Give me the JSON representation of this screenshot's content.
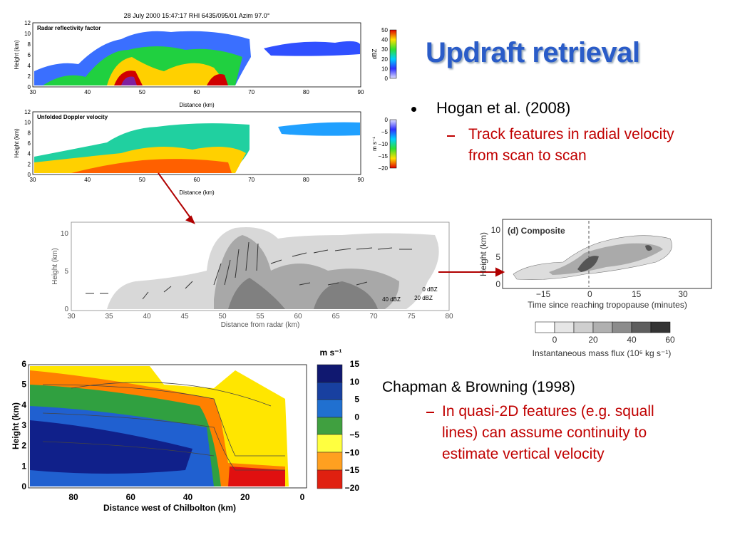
{
  "title": "Updraft retrieval",
  "bullets": [
    {
      "text": "Hogan et al. (2008)",
      "sub": "Track features in radial velocity from scan to scan"
    },
    {
      "text": "Chapman & Browning (1998)",
      "sub": "In quasi-2D features (e.g. squall lines) can assume continuity to estimate vertical velocity"
    }
  ],
  "figures": {
    "radar": {
      "header": "28 July 2000 15:47:17 RHI 6435/095/01 Azim  97.0°",
      "panels": [
        {
          "title": "Radar reflectivity factor",
          "colorbar_label": "dBZ",
          "colorbar_ticks": [
            "50",
            "40",
            "30",
            "20",
            "10",
            "0"
          ]
        },
        {
          "title": "Unfolded Doppler velocity",
          "colorbar_label": "m s⁻¹",
          "colorbar_ticks": [
            "0",
            "−5",
            "−10",
            "−15",
            "−20"
          ]
        }
      ],
      "ylabel": "Height (km)",
      "yticks": [
        "0",
        "2",
        "4",
        "6",
        "8",
        "10",
        "12"
      ],
      "xticks": [
        "30",
        "40",
        "50",
        "60",
        "70",
        "80",
        "90"
      ],
      "xlabel": "Distance (km)"
    },
    "retrieval": {
      "ylabel": "Height (km)",
      "yticks": [
        "0",
        "5",
        "10"
      ],
      "xticks": [
        "30",
        "35",
        "40",
        "45",
        "50",
        "55",
        "60",
        "65",
        "70",
        "75",
        "80"
      ],
      "xlabel": "Distance from radar (km)",
      "contours": [
        "0 dBZ",
        "20 dBZ",
        "40 dBZ"
      ]
    },
    "composite": {
      "panel": "(d) Composite",
      "ylabel": "Height (km)",
      "yticks": [
        "0",
        "5",
        "10"
      ],
      "xticks": [
        "−15",
        "0",
        "15",
        "30"
      ],
      "xlabel": "Time since reaching tropopause (minutes)",
      "colorbar_ticks": [
        "0",
        "20",
        "40",
        "60"
      ],
      "colorbar_label": "Instantaneous mass flux (10⁶ kg s⁻¹)"
    },
    "squall": {
      "ylabel": "Height (km)",
      "yticks": [
        "0",
        "1",
        "2",
        "3",
        "4",
        "5",
        "6"
      ],
      "xticks": [
        "80",
        "60",
        "40",
        "20",
        "0"
      ],
      "xlabel": "Distance west of Chilbolton (km)",
      "colorbar_unit": "m s⁻¹",
      "colorbar_ticks": [
        "15",
        "10",
        "5",
        "0",
        "−5",
        "−10",
        "−15",
        "−20"
      ]
    }
  }
}
